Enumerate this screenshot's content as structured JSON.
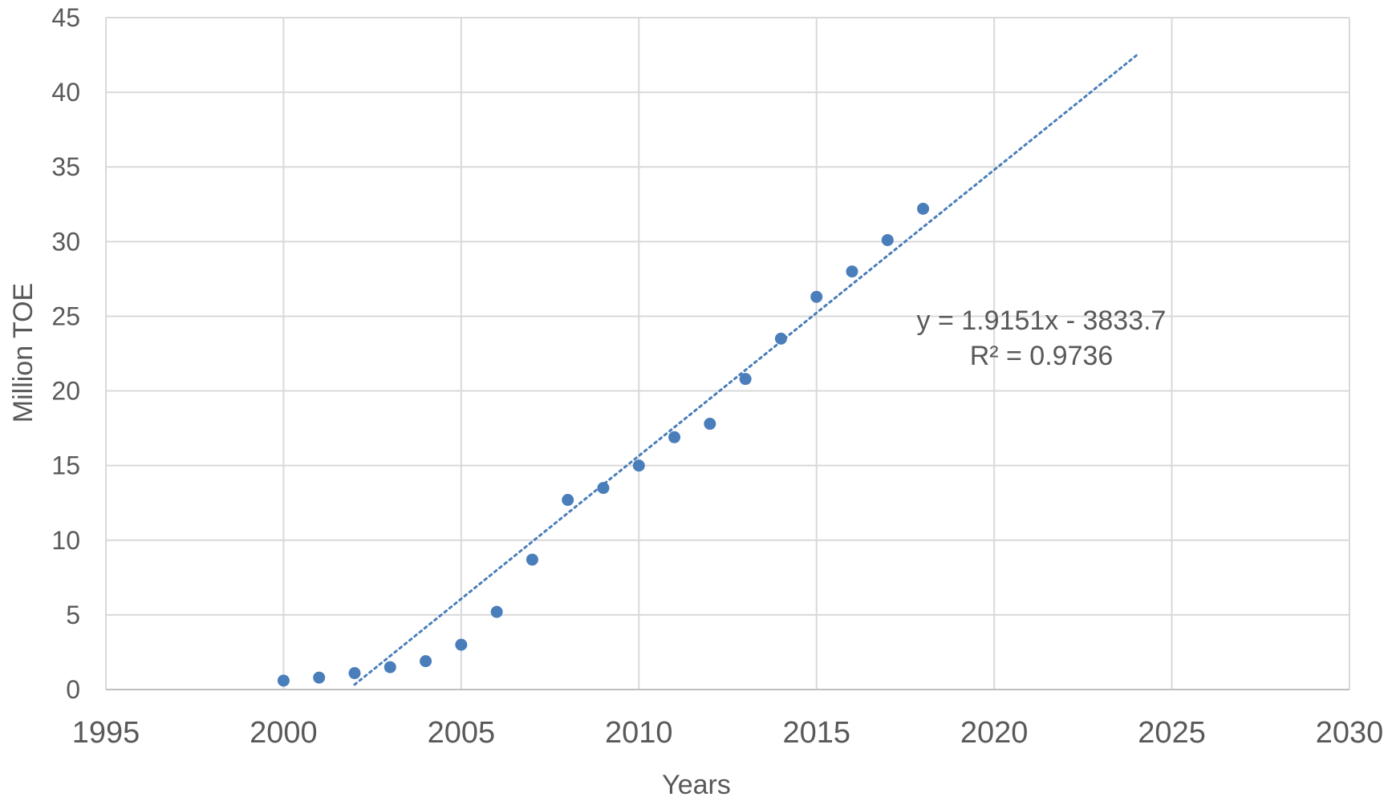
{
  "chart_data": {
    "type": "scatter",
    "title": "",
    "xlabel": "Years",
    "ylabel": "Million TOE",
    "xlim": [
      1995,
      2030
    ],
    "ylim": [
      0,
      45
    ],
    "x_ticks": [
      "1995",
      "2000",
      "2005",
      "2010",
      "2015",
      "2020",
      "2025",
      "2030"
    ],
    "y_ticks": [
      "0",
      "5",
      "10",
      "15",
      "20",
      "25",
      "30",
      "35",
      "40",
      "45"
    ],
    "grid": true,
    "legend": "none",
    "colors": {
      "points": "#4a7ebb",
      "trendline": "#4a7ebb",
      "grid": "#d9d9d9",
      "text": "#595959"
    },
    "series": [
      {
        "x": [
          2000,
          2001,
          2002,
          2003,
          2004,
          2005,
          2006,
          2007,
          2008,
          2009,
          2010,
          2011,
          2012,
          2013,
          2014,
          2015,
          2016,
          2017,
          2018
        ],
        "y": [
          0.6,
          0.8,
          1.1,
          1.5,
          1.9,
          3.0,
          5.2,
          8.7,
          12.7,
          13.5,
          15.0,
          16.9,
          17.8,
          20.8,
          23.5,
          26.3,
          28.0,
          30.1,
          32.2
        ]
      }
    ],
    "trendline": {
      "type": "linear",
      "style": "dotted",
      "slope": 1.9151,
      "intercept": -3833.7,
      "x_range": [
        2002,
        2024
      ],
      "equation_label": "y = 1.9151x - 3833.7",
      "r2_label": "R² = 0.9736"
    }
  }
}
